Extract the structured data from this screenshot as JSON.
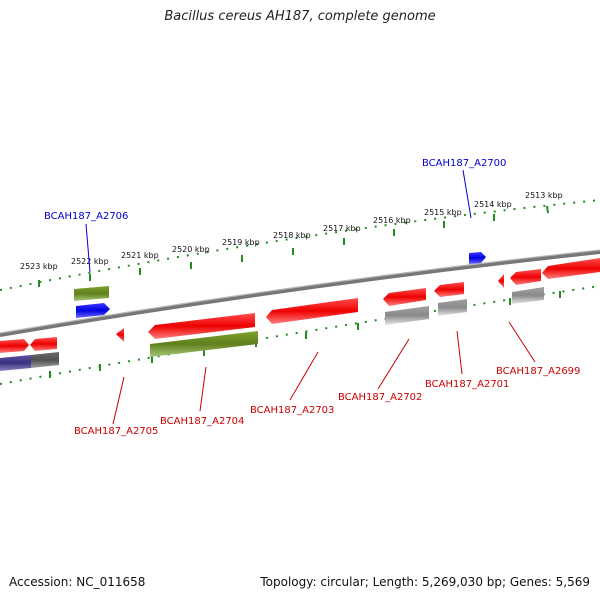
{
  "title": "Bacillus cereus AH187, complete genome",
  "accession": "Accession: NC_011658",
  "summary": "Topology: circular; Length: 5,269,030 bp; Genes: 5,569",
  "colors": {
    "cds_red": "#ff0000",
    "cds_green": "#6b8e23",
    "cds_blue": "#0000ee",
    "cds_gray": "#a9a9a9",
    "cds_navy": "#483d8b",
    "backbone": "#808080",
    "ruler": "#228b22",
    "label_red": "#cc0000",
    "label_blue": "#0000cc"
  },
  "ruler": {
    "ticks": [
      "2513 kbp",
      "2514 kbp",
      "2515 kbp",
      "2516 kbp",
      "2517 kbp",
      "2518 kbp",
      "2519 kbp",
      "2520 kbp",
      "2521 kbp",
      "2522 kbp",
      "2523 kbp"
    ]
  },
  "gene_labels": {
    "a2700": "BCAH187_A2700",
    "a2706": "BCAH187_A2706",
    "a2699": "BCAH187_A2699",
    "a2701": "BCAH187_A2701",
    "a2702": "BCAH187_A2702",
    "a2703": "BCAH187_A2703",
    "a2704": "BCAH187_A2704",
    "a2705": "BCAH187_A2705"
  }
}
